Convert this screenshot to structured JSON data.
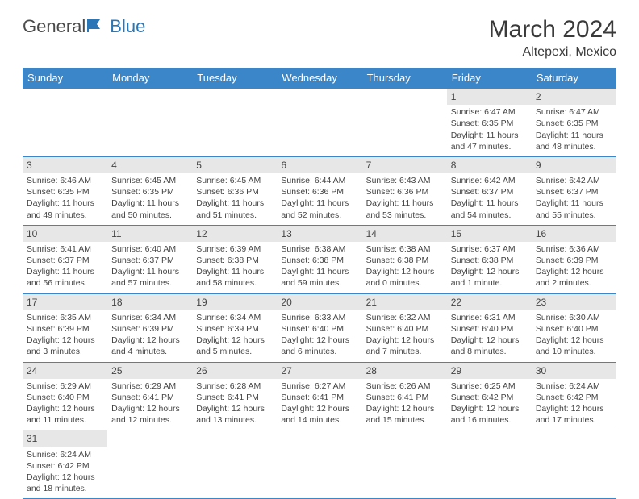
{
  "brand": {
    "part1": "General",
    "part2": "Blue"
  },
  "title": "March 2024",
  "location": "Altepexi, Mexico",
  "colors": {
    "header_bg": "#3a86c8",
    "header_text": "#ffffff",
    "border": "#3a86c8",
    "daynum_bg": "#e7e7e7"
  },
  "day_names": [
    "Sunday",
    "Monday",
    "Tuesday",
    "Wednesday",
    "Thursday",
    "Friday",
    "Saturday"
  ],
  "weeks": [
    [
      null,
      null,
      null,
      null,
      null,
      {
        "n": "1",
        "sr": "Sunrise: 6:47 AM",
        "ss": "Sunset: 6:35 PM",
        "dl": "Daylight: 11 hours and 47 minutes."
      },
      {
        "n": "2",
        "sr": "Sunrise: 6:47 AM",
        "ss": "Sunset: 6:35 PM",
        "dl": "Daylight: 11 hours and 48 minutes."
      }
    ],
    [
      {
        "n": "3",
        "sr": "Sunrise: 6:46 AM",
        "ss": "Sunset: 6:35 PM",
        "dl": "Daylight: 11 hours and 49 minutes."
      },
      {
        "n": "4",
        "sr": "Sunrise: 6:45 AM",
        "ss": "Sunset: 6:35 PM",
        "dl": "Daylight: 11 hours and 50 minutes."
      },
      {
        "n": "5",
        "sr": "Sunrise: 6:45 AM",
        "ss": "Sunset: 6:36 PM",
        "dl": "Daylight: 11 hours and 51 minutes."
      },
      {
        "n": "6",
        "sr": "Sunrise: 6:44 AM",
        "ss": "Sunset: 6:36 PM",
        "dl": "Daylight: 11 hours and 52 minutes."
      },
      {
        "n": "7",
        "sr": "Sunrise: 6:43 AM",
        "ss": "Sunset: 6:36 PM",
        "dl": "Daylight: 11 hours and 53 minutes."
      },
      {
        "n": "8",
        "sr": "Sunrise: 6:42 AM",
        "ss": "Sunset: 6:37 PM",
        "dl": "Daylight: 11 hours and 54 minutes."
      },
      {
        "n": "9",
        "sr": "Sunrise: 6:42 AM",
        "ss": "Sunset: 6:37 PM",
        "dl": "Daylight: 11 hours and 55 minutes."
      }
    ],
    [
      {
        "n": "10",
        "sr": "Sunrise: 6:41 AM",
        "ss": "Sunset: 6:37 PM",
        "dl": "Daylight: 11 hours and 56 minutes."
      },
      {
        "n": "11",
        "sr": "Sunrise: 6:40 AM",
        "ss": "Sunset: 6:37 PM",
        "dl": "Daylight: 11 hours and 57 minutes."
      },
      {
        "n": "12",
        "sr": "Sunrise: 6:39 AM",
        "ss": "Sunset: 6:38 PM",
        "dl": "Daylight: 11 hours and 58 minutes."
      },
      {
        "n": "13",
        "sr": "Sunrise: 6:38 AM",
        "ss": "Sunset: 6:38 PM",
        "dl": "Daylight: 11 hours and 59 minutes."
      },
      {
        "n": "14",
        "sr": "Sunrise: 6:38 AM",
        "ss": "Sunset: 6:38 PM",
        "dl": "Daylight: 12 hours and 0 minutes."
      },
      {
        "n": "15",
        "sr": "Sunrise: 6:37 AM",
        "ss": "Sunset: 6:38 PM",
        "dl": "Daylight: 12 hours and 1 minute."
      },
      {
        "n": "16",
        "sr": "Sunrise: 6:36 AM",
        "ss": "Sunset: 6:39 PM",
        "dl": "Daylight: 12 hours and 2 minutes."
      }
    ],
    [
      {
        "n": "17",
        "sr": "Sunrise: 6:35 AM",
        "ss": "Sunset: 6:39 PM",
        "dl": "Daylight: 12 hours and 3 minutes."
      },
      {
        "n": "18",
        "sr": "Sunrise: 6:34 AM",
        "ss": "Sunset: 6:39 PM",
        "dl": "Daylight: 12 hours and 4 minutes."
      },
      {
        "n": "19",
        "sr": "Sunrise: 6:34 AM",
        "ss": "Sunset: 6:39 PM",
        "dl": "Daylight: 12 hours and 5 minutes."
      },
      {
        "n": "20",
        "sr": "Sunrise: 6:33 AM",
        "ss": "Sunset: 6:40 PM",
        "dl": "Daylight: 12 hours and 6 minutes."
      },
      {
        "n": "21",
        "sr": "Sunrise: 6:32 AM",
        "ss": "Sunset: 6:40 PM",
        "dl": "Daylight: 12 hours and 7 minutes."
      },
      {
        "n": "22",
        "sr": "Sunrise: 6:31 AM",
        "ss": "Sunset: 6:40 PM",
        "dl": "Daylight: 12 hours and 8 minutes."
      },
      {
        "n": "23",
        "sr": "Sunrise: 6:30 AM",
        "ss": "Sunset: 6:40 PM",
        "dl": "Daylight: 12 hours and 10 minutes."
      }
    ],
    [
      {
        "n": "24",
        "sr": "Sunrise: 6:29 AM",
        "ss": "Sunset: 6:40 PM",
        "dl": "Daylight: 12 hours and 11 minutes."
      },
      {
        "n": "25",
        "sr": "Sunrise: 6:29 AM",
        "ss": "Sunset: 6:41 PM",
        "dl": "Daylight: 12 hours and 12 minutes."
      },
      {
        "n": "26",
        "sr": "Sunrise: 6:28 AM",
        "ss": "Sunset: 6:41 PM",
        "dl": "Daylight: 12 hours and 13 minutes."
      },
      {
        "n": "27",
        "sr": "Sunrise: 6:27 AM",
        "ss": "Sunset: 6:41 PM",
        "dl": "Daylight: 12 hours and 14 minutes."
      },
      {
        "n": "28",
        "sr": "Sunrise: 6:26 AM",
        "ss": "Sunset: 6:41 PM",
        "dl": "Daylight: 12 hours and 15 minutes."
      },
      {
        "n": "29",
        "sr": "Sunrise: 6:25 AM",
        "ss": "Sunset: 6:42 PM",
        "dl": "Daylight: 12 hours and 16 minutes."
      },
      {
        "n": "30",
        "sr": "Sunrise: 6:24 AM",
        "ss": "Sunset: 6:42 PM",
        "dl": "Daylight: 12 hours and 17 minutes."
      }
    ],
    [
      {
        "n": "31",
        "sr": "Sunrise: 6:24 AM",
        "ss": "Sunset: 6:42 PM",
        "dl": "Daylight: 12 hours and 18 minutes."
      },
      null,
      null,
      null,
      null,
      null,
      null
    ]
  ]
}
